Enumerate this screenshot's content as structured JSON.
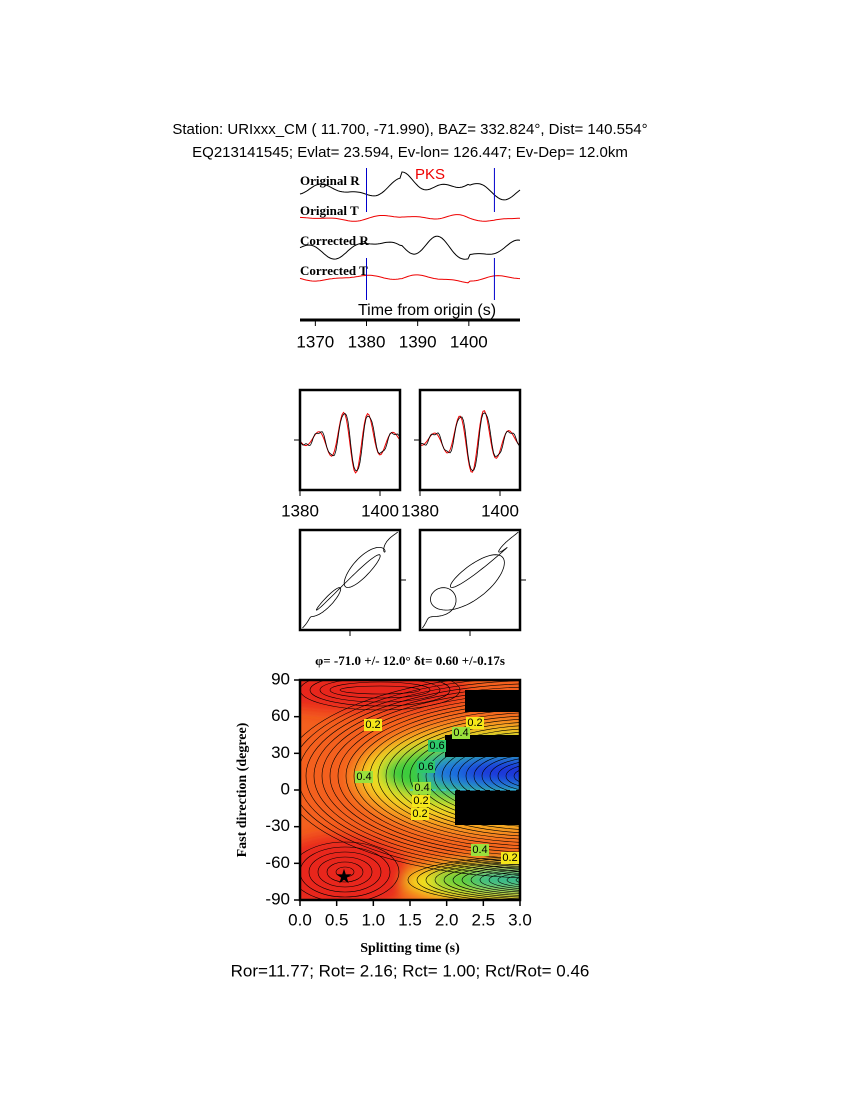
{
  "header": {
    "line1": "Station: URIxxx_CM (  11.700,  -71.990), BAZ=  332.824°, Dist=  140.554°",
    "line2": "EQ213141545; Evlat=  23.594, Ev-lon= 126.447; Ev-Dep= 12.0km"
  },
  "traces": {
    "labels": [
      "Original R",
      "Original T",
      "Corrected R",
      "Corrected T"
    ],
    "phase": "PKS",
    "xlabel": "Time from origin (s)",
    "xlim": [
      1367,
      1410
    ],
    "xticks": [
      1370,
      1380,
      1390,
      1400
    ],
    "window": [
      1380,
      1405
    ]
  },
  "windows": {
    "xlim": [
      1380,
      1405
    ],
    "xticks": [
      1380,
      1400
    ]
  },
  "grid_search": {
    "title": "φ= -71.0 +/- 12.0° δt= 0.60 +/-0.17s",
    "xlabel": "Splitting time (s)",
    "ylabel": "Fast direction (degree)",
    "xlim": [
      0,
      3
    ],
    "ylim": [
      -90,
      90
    ],
    "xticks": [
      {
        "value": 0,
        "label": "0.0"
      },
      {
        "value": 0.5,
        "label": "0.5"
      },
      {
        "value": 1,
        "label": "1.0"
      },
      {
        "value": 1.5,
        "label": "1.5"
      },
      {
        "value": 2,
        "label": "2.0"
      },
      {
        "value": 2.5,
        "label": "2.5"
      },
      {
        "value": 3,
        "label": "3.0"
      }
    ],
    "yticks": [
      -90,
      -60,
      -30,
      0,
      30,
      60,
      90
    ],
    "best": {
      "dt": 0.6,
      "phi": -71
    },
    "contour_labels": [
      0.2,
      0.2,
      0.4,
      0.6,
      0.4,
      0.6,
      0.4,
      0.2,
      0.2,
      0.4,
      0.2
    ]
  },
  "footer": "Ror=11.77; Rot= 2.16; Rct= 1.00; Rct/Rot= 0.46"
}
